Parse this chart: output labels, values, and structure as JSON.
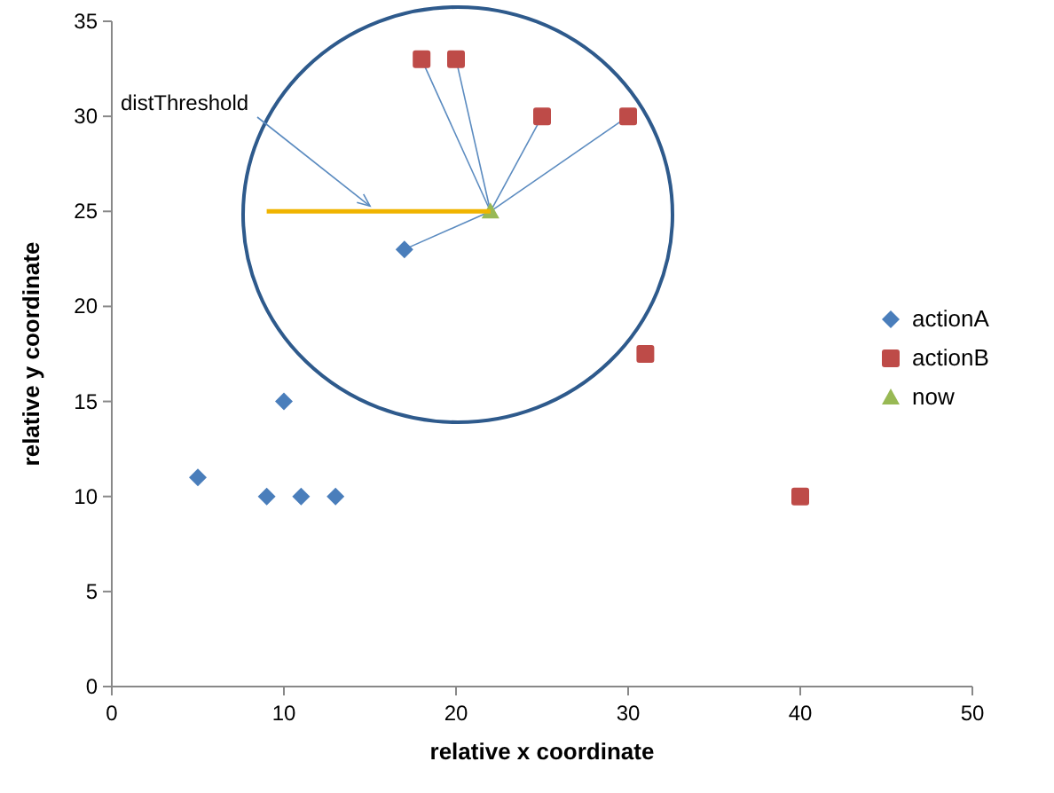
{
  "chart_data": {
    "type": "scatter",
    "xlabel": "relative x coordinate",
    "ylabel": "relative y coordinate",
    "xlim": [
      0,
      50
    ],
    "xticks": [
      0,
      10,
      20,
      30,
      40,
      50
    ],
    "ylim": [
      0,
      35
    ],
    "yticks": [
      0,
      5,
      10,
      15,
      20,
      25,
      30,
      35
    ],
    "grid": false,
    "legend": "right",
    "series": [
      {
        "name": "actionA",
        "color": "#4a7ebb",
        "marker": "diamond",
        "x": [
          5,
          9,
          10,
          11,
          13,
          17
        ],
        "values": [
          11,
          10,
          15,
          10,
          10,
          23
        ]
      },
      {
        "name": "actionB",
        "color": "#be4b48",
        "marker": "square",
        "x": [
          18,
          20,
          25,
          30,
          31,
          40
        ],
        "values": [
          33,
          33,
          30,
          30,
          17.5,
          10
        ]
      },
      {
        "name": "now",
        "color": "#98b954",
        "marker": "triangle",
        "x": [
          22
        ],
        "values": [
          25
        ]
      },
      {
        "type": "line",
        "color": "#f0b400",
        "x": [
          9,
          22
        ],
        "values": [
          25,
          25
        ]
      }
    ],
    "annotations": [
      {
        "text": "distThreshold",
        "x": 15,
        "y": 25
      }
    ]
  }
}
